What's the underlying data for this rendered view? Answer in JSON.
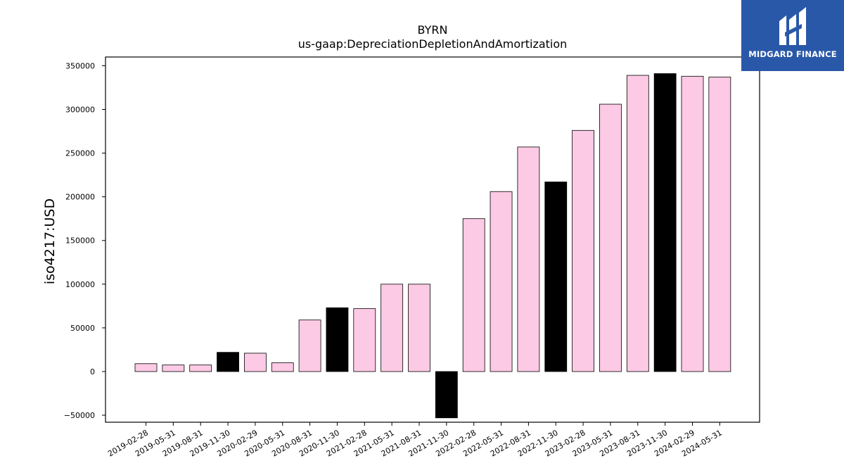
{
  "chart_data": {
    "type": "bar",
    "title": "BYRN",
    "subtitle": "us-gaap:DepreciationDepletionAndAmortization",
    "ylabel": "iso4217:USD",
    "xlabel": "",
    "ylim": [
      -58000,
      360000
    ],
    "yticks": [
      -50000,
      0,
      50000,
      100000,
      150000,
      200000,
      250000,
      300000,
      350000
    ],
    "ytick_labels": [
      "−50000",
      "0",
      "50000",
      "100000",
      "150000",
      "200000",
      "250000",
      "300000",
      "350000"
    ],
    "grid": false,
    "categories": [
      "2019-02-28",
      "2019-05-31",
      "2019-08-31",
      "2019-11-30",
      "2020-02-29",
      "2020-05-31",
      "2020-08-31",
      "2020-11-30",
      "2021-02-28",
      "2021-05-31",
      "2021-08-31",
      "2021-11-30",
      "2022-02-28",
      "2022-05-31",
      "2022-08-31",
      "2022-11-30",
      "2023-02-28",
      "2023-05-31",
      "2023-08-31",
      "2023-11-30",
      "2024-02-29",
      "2024-05-31"
    ],
    "values": [
      9000,
      7500,
      7500,
      22000,
      21000,
      10000,
      59000,
      73000,
      72000,
      100000,
      100000,
      -53000,
      175000,
      206000,
      257000,
      217000,
      276000,
      306000,
      339000,
      341000,
      338000,
      337000
    ],
    "highlight": [
      false,
      false,
      false,
      true,
      false,
      false,
      false,
      true,
      false,
      false,
      false,
      true,
      false,
      false,
      false,
      true,
      false,
      false,
      false,
      true,
      false,
      false
    ],
    "colors": {
      "bar": "#fccae4",
      "highlight": "#000000",
      "edge": "#000000"
    }
  },
  "logo": {
    "text": "MIDGARD FINANCE",
    "background": "#2a58a8"
  }
}
